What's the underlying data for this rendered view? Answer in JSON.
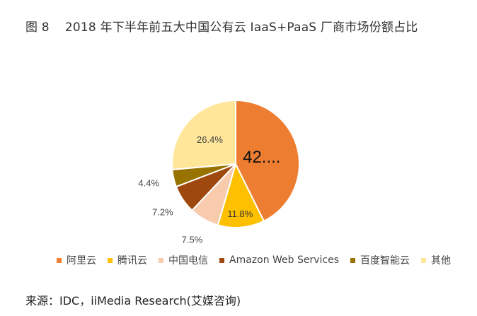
{
  "title": {
    "figure": "图 8",
    "text": "2018 年下半年前五大中国公有云 IaaS+PaaS 厂商市场份额占比"
  },
  "source": "来源：IDC，iiMedia Research(艾媒咨询)",
  "chart_data": {
    "type": "pie",
    "title": "2018 年下半年前五大中国公有云 IaaS+PaaS 厂商市场份额占比",
    "categories": [
      "阿里云",
      "腾讯云",
      "中国电信",
      "Amazon Web Services",
      "百度智能云",
      "其他"
    ],
    "values": [
      42.7,
      11.8,
      7.5,
      7.2,
      4.4,
      26.4
    ],
    "labels": [
      "42....",
      "11.8%",
      "7.5%",
      "7.2%",
      "4.4%",
      "26.4%"
    ],
    "colors": [
      "#ED7D31",
      "#FFC000",
      "#F8CBAD",
      "#9E480E",
      "#997300",
      "#FFE699"
    ],
    "legend_position": "bottom",
    "start": "12 o'clock, clockwise"
  }
}
